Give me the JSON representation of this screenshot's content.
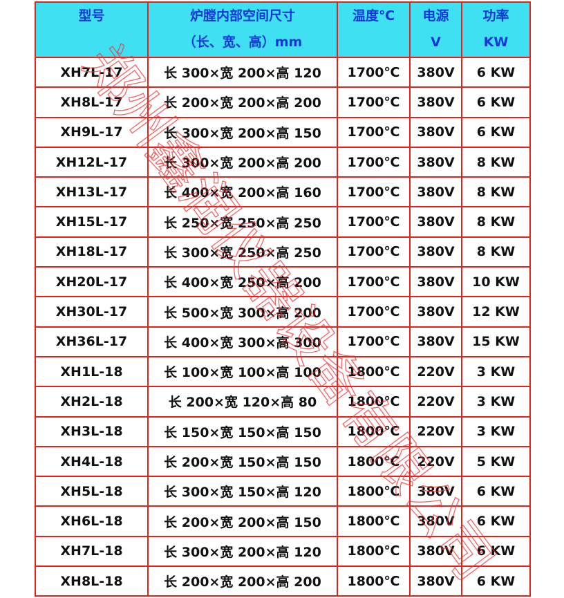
{
  "table": {
    "header": [
      [
        "型号"
      ],
      [
        "炉膛内部空间尺寸",
        "（长、宽、高）mm"
      ],
      [
        "温度℃"
      ],
      [
        "电源",
        "V"
      ],
      [
        "功率",
        "KW"
      ]
    ],
    "rows": [
      [
        "XH7L-17",
        "长 300×宽 200×高 120",
        "1700℃",
        "380V",
        "6 KW"
      ],
      [
        "XH8L-17",
        "长 200×宽 200×高 200",
        "1700℃",
        "380V",
        "6 KW"
      ],
      [
        "XH9L-17",
        "长 300×宽 200×高 150",
        "1700℃",
        "380V",
        "6 KW"
      ],
      [
        "XH12L-17",
        "长 300×宽 200×高 200",
        "1700℃",
        "380V",
        "8 KW"
      ],
      [
        "XH13L-17",
        "长 400×宽 200×高 160",
        "1700℃",
        "380V",
        "8 KW"
      ],
      [
        "XH15L-17",
        "长 250×宽 250×高 250",
        "1700℃",
        "380V",
        "8 KW"
      ],
      [
        "XH18L-17",
        "长 300×宽 250×高 250",
        "1700℃",
        "380V",
        "8 KW"
      ],
      [
        "XH20L-17",
        "长 400×宽 250×高 200",
        "1700℃",
        "380V",
        "10 KW"
      ],
      [
        "XH30L-17",
        "长 500×宽 300×高 200",
        "1700℃",
        "380V",
        "12 KW"
      ],
      [
        "XH36L-17",
        "长 400×宽 300×高 300",
        "1700℃",
        "380V",
        "15 KW"
      ],
      [
        "XH1L-18",
        "长 100×宽 100×高 100",
        "1800℃",
        "220V",
        "3 KW"
      ],
      [
        "XH2L-18",
        "长 200×宽 120×高 80",
        "1800℃",
        "220V",
        "3 KW"
      ],
      [
        "XH3L-18",
        "长 150×宽 150×高 150",
        "1800℃",
        "220V",
        "3 KW"
      ],
      [
        "XH4L-18",
        "长 200×宽 150×高 150",
        "1800℃",
        "220V",
        "5 KW"
      ],
      [
        "XH5L-18",
        "长 300×宽 150×高 120",
        "1800℃",
        "380V",
        "6 KW"
      ],
      [
        "XH6L-18",
        "长 200×宽 200×高 150",
        "1800℃",
        "380V",
        "6 KW"
      ],
      [
        "XH7L-18",
        "长 300×宽 200×高 120",
        "1800℃",
        "380V",
        "6 KW"
      ],
      [
        "XH8L-18",
        "长 200×宽 200×高 200",
        "1800℃",
        "380V",
        "6 KW"
      ]
    ]
  },
  "watermark": "郑州鑫润仪器设备有限公司"
}
